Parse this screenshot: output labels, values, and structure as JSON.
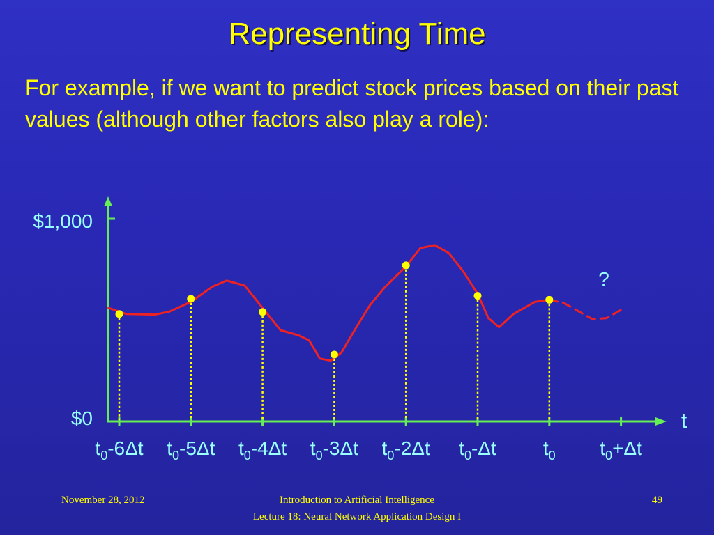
{
  "slide": {
    "title": "Representing Time",
    "body": "For example, if we want to predict stock prices based on their past values (although other factors also play a role):"
  },
  "footer": {
    "date": "November 28, 2012",
    "course_line1": "Introduction to Artificial Intelligence",
    "course_line2": "Lecture 18: Neural Network Application Design I",
    "page": "49"
  },
  "colors": {
    "axis": "#66ee55",
    "curve": "#ee2222",
    "samples": "#ffff00",
    "axis_text": "#99ffff"
  },
  "chart_data": {
    "type": "line",
    "ylabel_top": "$1,000",
    "ylabel_bottom": "$0",
    "ylim": [
      0,
      1000
    ],
    "xaxis_label": "t",
    "unknown_marker": "?",
    "ticks": [
      {
        "base": "t",
        "sub": "0",
        "suffix": "-6Δt"
      },
      {
        "base": "t",
        "sub": "0",
        "suffix": "-5Δt"
      },
      {
        "base": "t",
        "sub": "0",
        "suffix": "-4Δt"
      },
      {
        "base": "t",
        "sub": "0",
        "suffix": "-3Δt"
      },
      {
        "base": "t",
        "sub": "0",
        "suffix": "-2Δt"
      },
      {
        "base": "t",
        "sub": "0",
        "suffix": "-Δt"
      },
      {
        "base": "t",
        "sub": "0",
        "suffix": ""
      },
      {
        "base": "t",
        "sub": "0",
        "suffix": "+Δt"
      }
    ],
    "samples": [
      {
        "x": -6,
        "y": 530
      },
      {
        "x": -5,
        "y": 605
      },
      {
        "x": -4,
        "y": 540
      },
      {
        "x": -3,
        "y": 330
      },
      {
        "x": -2,
        "y": 770
      },
      {
        "x": -1,
        "y": 620
      },
      {
        "x": 0,
        "y": 600
      }
    ],
    "curve": [
      [
        -6.15,
        560
      ],
      [
        -5.9,
        530
      ],
      [
        -5.5,
        527
      ],
      [
        -5.3,
        542
      ],
      [
        -5.0,
        590
      ],
      [
        -4.7,
        665
      ],
      [
        -4.5,
        695
      ],
      [
        -4.25,
        670
      ],
      [
        -4.0,
        560
      ],
      [
        -3.75,
        450
      ],
      [
        -3.5,
        425
      ],
      [
        -3.35,
        400
      ],
      [
        -3.2,
        310
      ],
      [
        -3.05,
        300
      ],
      [
        -2.9,
        340
      ],
      [
        -2.7,
        460
      ],
      [
        -2.5,
        575
      ],
      [
        -2.3,
        660
      ],
      [
        -2.0,
        765
      ],
      [
        -1.8,
        855
      ],
      [
        -1.6,
        870
      ],
      [
        -1.4,
        830
      ],
      [
        -1.2,
        740
      ],
      [
        -1.0,
        630
      ],
      [
        -0.85,
        510
      ],
      [
        -0.7,
        465
      ],
      [
        -0.5,
        530
      ],
      [
        -0.35,
        560
      ],
      [
        -0.2,
        590
      ],
      [
        0.0,
        600
      ]
    ],
    "forecast": [
      [
        0.0,
        600
      ],
      [
        0.2,
        585
      ],
      [
        0.4,
        545
      ],
      [
        0.6,
        505
      ],
      [
        0.8,
        510
      ],
      [
        1.05,
        560
      ]
    ]
  }
}
